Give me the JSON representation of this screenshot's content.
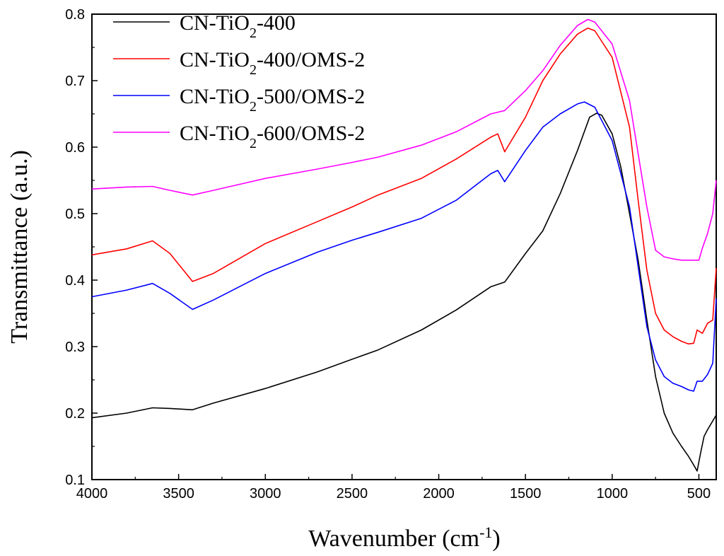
{
  "chart_data": {
    "type": "line",
    "title": "",
    "xlabel": "Wavenumber (cm-1)",
    "xlabel_parts": {
      "base": "Wavenumber (cm",
      "sup": "-1",
      "close": ")"
    },
    "ylabel": "Transmittance (a.u.)",
    "xlim": [
      4000,
      400
    ],
    "ylim": [
      0.1,
      0.8
    ],
    "x_ticks": [
      4000,
      3500,
      3000,
      2500,
      2000,
      1500,
      1000,
      500
    ],
    "x_tick_labels": [
      "4000",
      "3500",
      "3000",
      "2500",
      "2000",
      "1500",
      "1000",
      "500"
    ],
    "y_ticks": [
      0.1,
      0.2,
      0.3,
      0.4,
      0.5,
      0.6,
      0.7,
      0.8
    ],
    "y_tick_labels": [
      "0.1",
      "0.2",
      "0.3",
      "0.4",
      "0.5",
      "0.6",
      "0.7",
      "0.8"
    ],
    "legend_position": "top-left",
    "series": [
      {
        "name": "CN-TiO2-400",
        "label_parts": {
          "a": "CN-TiO",
          "sub": "2",
          "b": "-400"
        },
        "color": "#000000",
        "x": [
          4000,
          3800,
          3650,
          3550,
          3420,
          3300,
          3000,
          2700,
          2500,
          2350,
          2100,
          1900,
          1700,
          1620,
          1500,
          1400,
          1300,
          1200,
          1130,
          1090,
          1060,
          1000,
          950,
          900,
          850,
          800,
          750,
          700,
          650,
          600,
          560,
          530,
          510,
          490,
          470,
          450,
          400
        ],
        "y": [
          0.193,
          0.2,
          0.208,
          0.207,
          0.205,
          0.215,
          0.237,
          0.262,
          0.281,
          0.295,
          0.325,
          0.355,
          0.39,
          0.397,
          0.44,
          0.474,
          0.53,
          0.595,
          0.645,
          0.651,
          0.648,
          0.62,
          0.57,
          0.5,
          0.43,
          0.34,
          0.255,
          0.2,
          0.17,
          0.15,
          0.135,
          0.122,
          0.113,
          0.14,
          0.165,
          0.175,
          0.197
        ]
      },
      {
        "name": "CN-TiO2-400/OMS-2",
        "label_parts": {
          "a": "CN-TiO",
          "sub": "2",
          "b": "-400/OMS-2"
        },
        "color": "#ff0000",
        "x": [
          4000,
          3800,
          3650,
          3550,
          3420,
          3300,
          3000,
          2700,
          2500,
          2350,
          2100,
          1900,
          1700,
          1660,
          1620,
          1500,
          1400,
          1300,
          1200,
          1140,
          1100,
          1000,
          900,
          850,
          800,
          750,
          700,
          650,
          600,
          560,
          530,
          510,
          480,
          450,
          420,
          400
        ],
        "y": [
          0.438,
          0.447,
          0.459,
          0.44,
          0.398,
          0.41,
          0.455,
          0.488,
          0.51,
          0.528,
          0.553,
          0.582,
          0.615,
          0.62,
          0.593,
          0.645,
          0.7,
          0.74,
          0.77,
          0.779,
          0.775,
          0.735,
          0.63,
          0.52,
          0.415,
          0.35,
          0.325,
          0.315,
          0.308,
          0.304,
          0.305,
          0.325,
          0.32,
          0.335,
          0.34,
          0.418
        ]
      },
      {
        "name": "CN-TiO2-500/OMS-2",
        "label_parts": {
          "a": "CN-TiO",
          "sub": "2",
          "b": "-500/OMS-2"
        },
        "color": "#0000ff",
        "x": [
          4000,
          3800,
          3650,
          3550,
          3420,
          3300,
          3000,
          2700,
          2500,
          2350,
          2100,
          1900,
          1700,
          1660,
          1620,
          1500,
          1400,
          1300,
          1200,
          1160,
          1100,
          1000,
          900,
          850,
          800,
          750,
          700,
          650,
          600,
          560,
          530,
          510,
          480,
          450,
          420,
          400
        ],
        "y": [
          0.375,
          0.385,
          0.395,
          0.38,
          0.356,
          0.37,
          0.41,
          0.442,
          0.46,
          0.472,
          0.493,
          0.52,
          0.56,
          0.565,
          0.548,
          0.595,
          0.63,
          0.65,
          0.665,
          0.668,
          0.66,
          0.61,
          0.51,
          0.42,
          0.33,
          0.28,
          0.255,
          0.245,
          0.24,
          0.235,
          0.233,
          0.248,
          0.248,
          0.258,
          0.275,
          0.372
        ]
      },
      {
        "name": "CN-TiO2-600/OMS-2",
        "label_parts": {
          "a": "CN-TiO",
          "sub": "2",
          "b": "-600/OMS-2"
        },
        "color": "#ff00ff",
        "x": [
          4000,
          3800,
          3650,
          3550,
          3420,
          3300,
          3000,
          2700,
          2500,
          2350,
          2100,
          1900,
          1700,
          1620,
          1500,
          1400,
          1300,
          1200,
          1140,
          1100,
          1000,
          900,
          850,
          800,
          750,
          700,
          650,
          600,
          550,
          500,
          480,
          450,
          420,
          400
        ],
        "y": [
          0.537,
          0.54,
          0.541,
          0.535,
          0.528,
          0.535,
          0.553,
          0.567,
          0.577,
          0.585,
          0.603,
          0.623,
          0.65,
          0.655,
          0.685,
          0.715,
          0.753,
          0.783,
          0.792,
          0.788,
          0.755,
          0.67,
          0.59,
          0.51,
          0.445,
          0.435,
          0.432,
          0.43,
          0.43,
          0.43,
          0.448,
          0.47,
          0.5,
          0.55
        ]
      }
    ]
  }
}
